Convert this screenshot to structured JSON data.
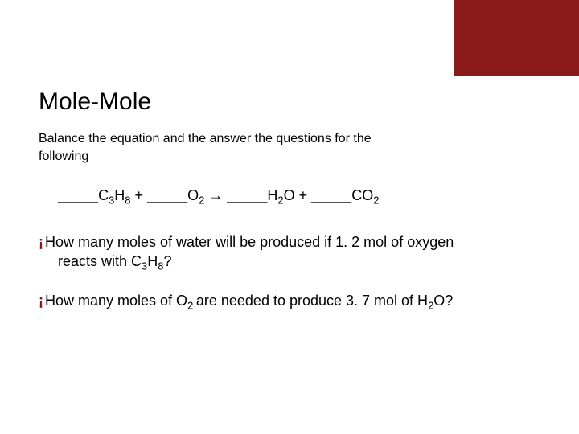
{
  "colors": {
    "accent": "#8b1a1a",
    "background": "#ffffff",
    "text": "#000000"
  },
  "corner_box": {
    "width": 155,
    "height": 95,
    "color": "#8b1a1a"
  },
  "title": "Mole-Mole",
  "instruction": "Balance the equation and the answer the questions for the following",
  "equation": {
    "blank": "_____",
    "term1_base": "C",
    "term1_sub1": "3",
    "term1_mid": "H",
    "term1_sub2": "8",
    "plus": " + ",
    "term2_base": "O",
    "term2_sub": "2",
    "arrow": " → ",
    "term3_base": "H",
    "term3_sub1": "2",
    "term3_mid": "O",
    "plus2": " + ",
    "term4_base": "CO",
    "term4_sub": "2"
  },
  "bullet_glyph": "¡",
  "questions": [
    {
      "pre": "How many moles of water will be produced if 1. 2 mol of oxygen reacts with C",
      "sub1": "3",
      "mid": "H",
      "sub2": "8",
      "post": "?"
    },
    {
      "pre": "How many moles of O",
      "sub1": "2 ",
      "mid": " are needed to produce 3. 7 mol of H",
      "sub2": "2",
      "mid2": "O?",
      "post": ""
    }
  ],
  "typography": {
    "title_fontsize": 30,
    "body_fontsize": 16,
    "equation_fontsize": 18,
    "question_fontsize": 18,
    "font_family": "Arial"
  }
}
